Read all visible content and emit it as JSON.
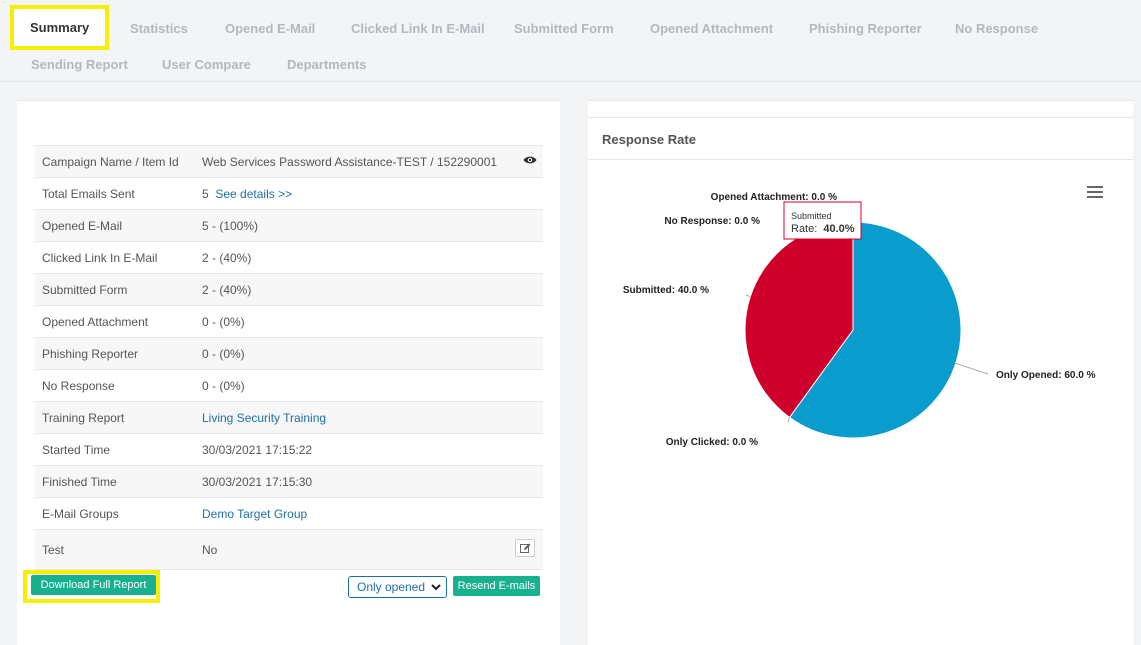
{
  "tabs": [
    {
      "label": "Summary",
      "active": true
    },
    {
      "label": "Statistics"
    },
    {
      "label": "Opened E-Mail"
    },
    {
      "label": "Clicked Link In E-Mail"
    },
    {
      "label": "Submitted Form"
    },
    {
      "label": "Opened Attachment"
    },
    {
      "label": "Phishing Reporter"
    },
    {
      "label": "No Response"
    },
    {
      "label": "Sending Report"
    },
    {
      "label": "User Compare"
    },
    {
      "label": "Departments"
    }
  ],
  "summary": {
    "campaign": {
      "label": "Campaign Name / Item Id",
      "value": "Web Services Password Assistance-TEST / 152290001",
      "icon": "eye-icon"
    },
    "total_sent": {
      "label": "Total Emails Sent",
      "value": "5",
      "link": "See details >>"
    },
    "opened": {
      "label": "Opened E-Mail",
      "value": "5 - (100%)"
    },
    "clicked": {
      "label": "Clicked Link In E-Mail",
      "value": "2 - (40%)"
    },
    "submitted": {
      "label": "Submitted Form",
      "value": "2 - (40%)"
    },
    "attachment": {
      "label": "Opened Attachment",
      "value": "0 - (0%)"
    },
    "reporter": {
      "label": "Phishing Reporter",
      "value": "0 - (0%)"
    },
    "no_response": {
      "label": "No Response",
      "value": "0 - (0%)"
    },
    "training": {
      "label": "Training Report",
      "value": "Living Security Training"
    },
    "started": {
      "label": "Started Time",
      "value": "30/03/2021 17:15:22"
    },
    "finished": {
      "label": "Finished Time",
      "value": "30/03/2021 17:15:30"
    },
    "groups": {
      "label": "E-Mail Groups",
      "value": "Demo Target Group"
    },
    "test": {
      "label": "Test",
      "value": "No",
      "icon": "edit-icon"
    }
  },
  "actions": {
    "download": "Download Full Report",
    "filter_selected": "Only opened",
    "resend": "Resend E-mails"
  },
  "chart_panel": {
    "title": "Response Rate",
    "menu_icon": "hamburger-menu-icon",
    "tooltip": {
      "series": "Submitted",
      "label": "Rate:",
      "value": "40.0%"
    }
  },
  "chart_data": {
    "type": "pie",
    "slices": [
      {
        "label": "Only Opened: 60.0 %",
        "value": 60.0,
        "color": "#0a9ccc"
      },
      {
        "label": "Only Clicked: 0.0 %",
        "value": 0.0,
        "color": "#8bc34a"
      },
      {
        "label": "Submitted: 40.0 %",
        "value": 40.0,
        "color": "#d0002c"
      },
      {
        "label": "No Response: 0.0 %",
        "value": 0.0,
        "color": "#999999"
      },
      {
        "label": "Opened Attachment: 0.0 %",
        "value": 0.0,
        "color": "#f0a030"
      }
    ]
  }
}
